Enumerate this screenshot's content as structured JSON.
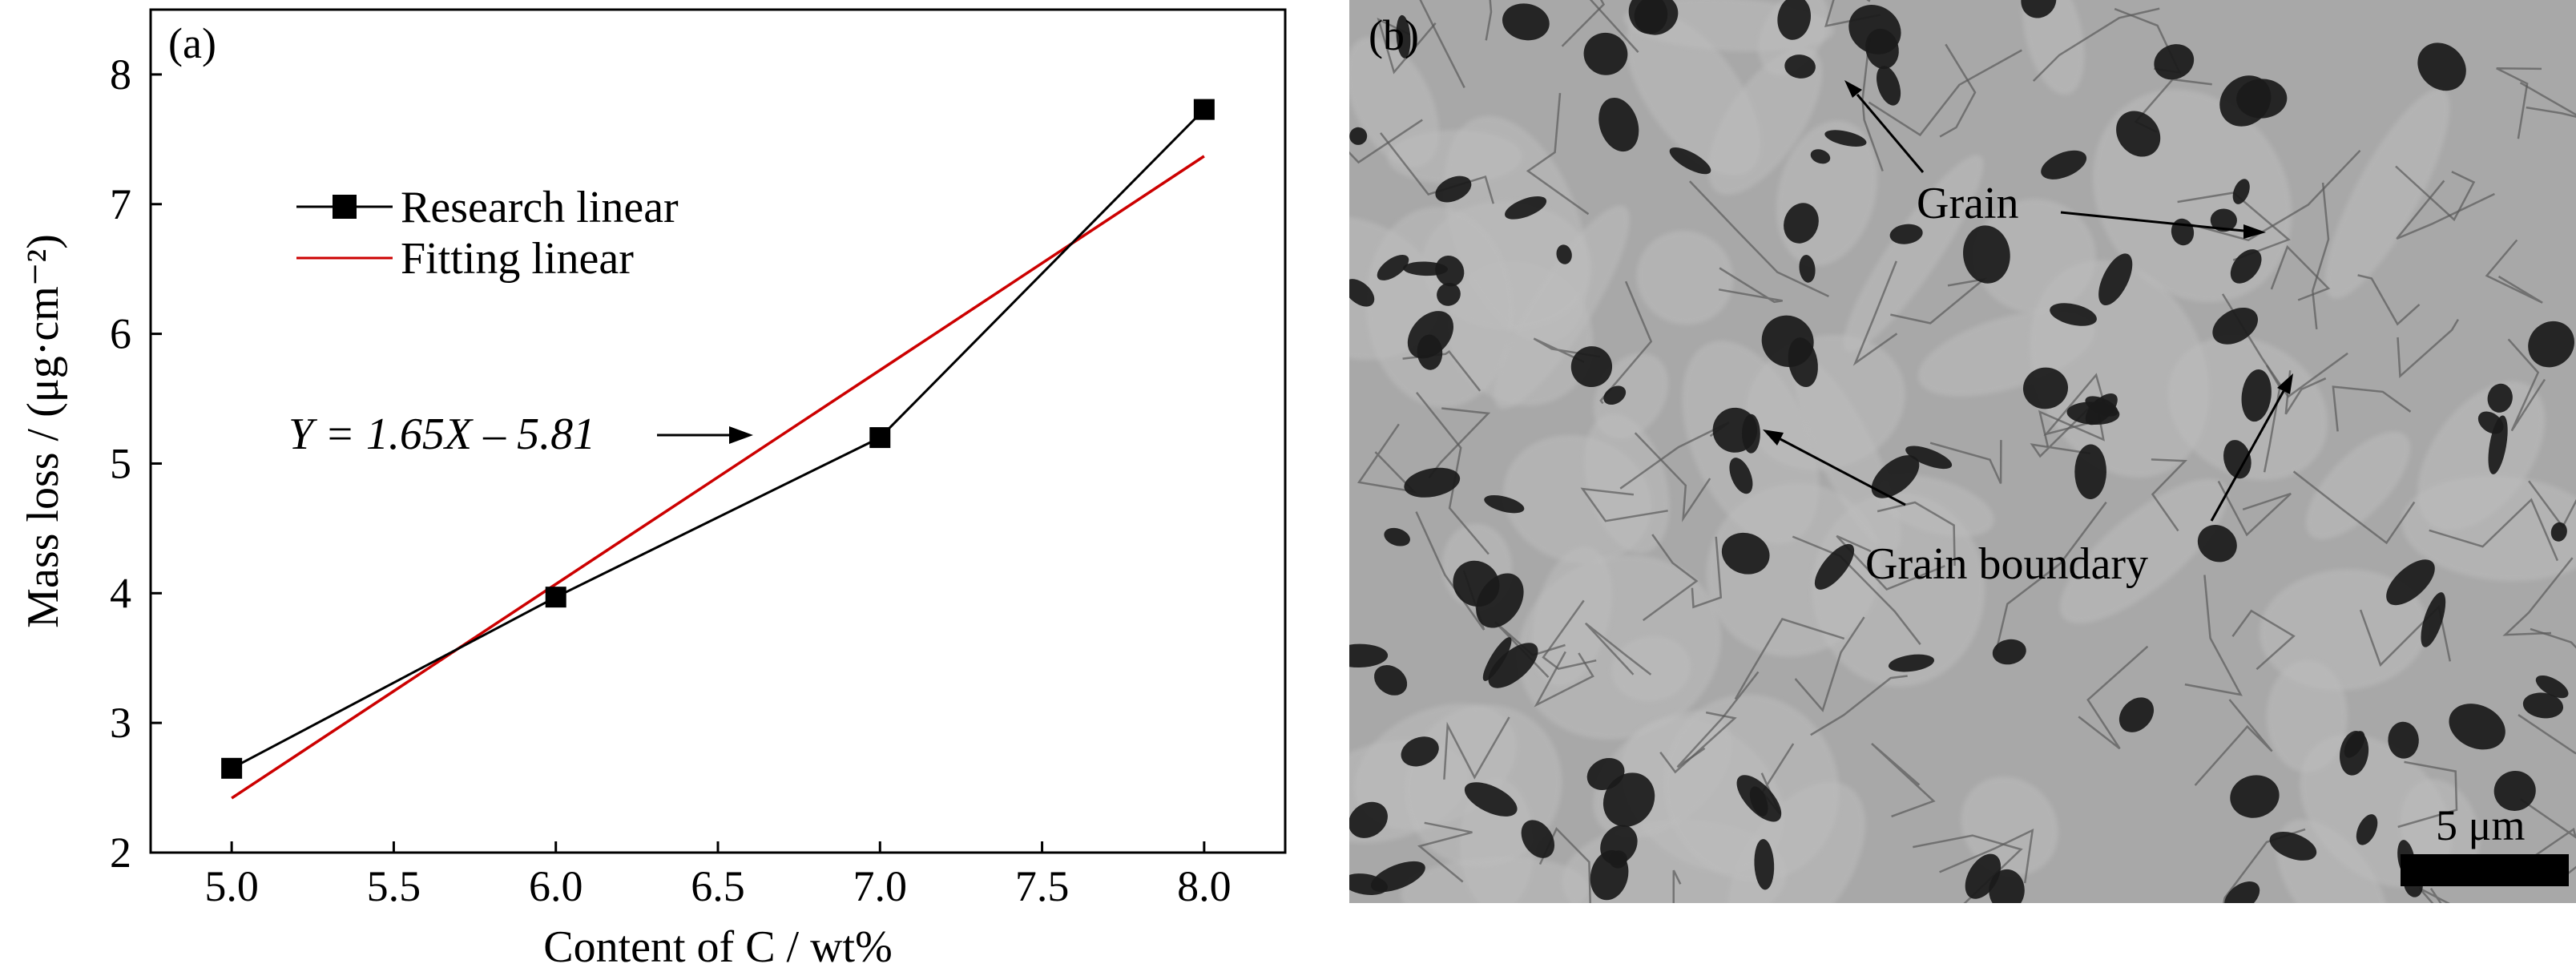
{
  "panels": {
    "a": {
      "label": "(a)"
    },
    "b": {
      "label": "(b)",
      "annotations": [
        "Grain",
        "Grain boundary"
      ],
      "scale_bar": "5 μm",
      "colors": {
        "background": "#a8a8a8",
        "grain_light": "#bdbdbd",
        "pore": "#1a1a1a",
        "boundary": "#5a5a5a"
      }
    }
  },
  "chart_data": {
    "type": "line",
    "xlabel": "Content of C / wt%",
    "ylabel": "Mass loss / (μg·cm⁻²)",
    "xlim": [
      4.75,
      8.25
    ],
    "ylim": [
      2,
      8.5
    ],
    "xticks": [
      "5.0",
      "5.5",
      "6.0",
      "6.5",
      "7.0",
      "7.5",
      "8.0"
    ],
    "yticks": [
      "2",
      "3",
      "4",
      "5",
      "6",
      "7",
      "8"
    ],
    "grid": false,
    "legend_position": "top-left",
    "series": [
      {
        "name": "Research linear",
        "x": [
          5.0,
          6.0,
          7.0,
          8.0
        ],
        "y": [
          2.65,
          3.97,
          5.2,
          7.73
        ],
        "color": "#000000",
        "marker": "square"
      },
      {
        "name": "Fitting linear",
        "x": [
          5.0,
          8.0
        ],
        "y": [
          2.42,
          7.37
        ],
        "color": "#cc0000",
        "marker": "none"
      }
    ],
    "annotations": [
      {
        "text": "Y = 1.65X – 5.81",
        "points_to": "Fitting linear"
      }
    ]
  }
}
